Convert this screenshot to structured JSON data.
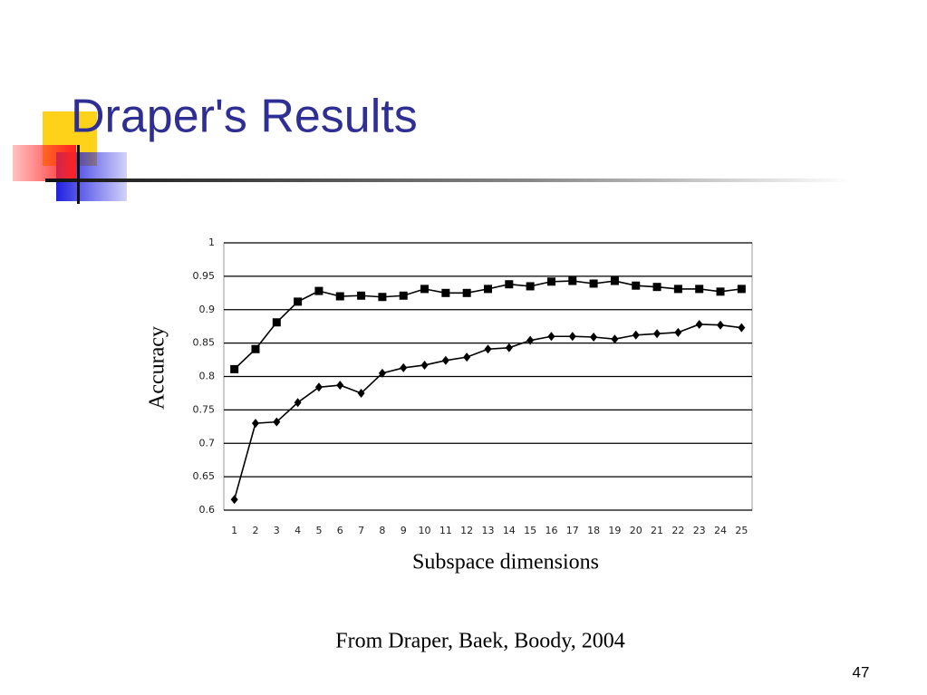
{
  "title": "Draper's Results",
  "caption": "From Draper, Baek, Boody, 2004",
  "page_number": "47",
  "chart_data": {
    "type": "line",
    "x_label": "Subspace dimensions",
    "y_label": "Accuracy",
    "categories": [
      "1",
      "2",
      "3",
      "4",
      "5",
      "6",
      "7",
      "8",
      "9",
      "10",
      "11",
      "12",
      "13",
      "14",
      "15",
      "16",
      "17",
      "18",
      "19",
      "20",
      "21",
      "22",
      "23",
      "24",
      "25"
    ],
    "ylim": [
      0.6,
      1
    ],
    "yticks": [
      0.6,
      0.65,
      0.7,
      0.75,
      0.8,
      0.85,
      0.9,
      0.95,
      1
    ],
    "grid": true,
    "series": [
      {
        "color": "#000000",
        "marker": "square",
        "values": [
          0.811,
          0.841,
          0.881,
          0.912,
          0.928,
          0.92,
          0.921,
          0.919,
          0.921,
          0.931,
          0.925,
          0.925,
          0.931,
          0.938,
          0.935,
          0.942,
          0.943,
          0.939,
          0.943,
          0.936,
          0.934,
          0.931,
          0.931,
          0.927,
          0.931
        ]
      },
      {
        "color": "#000000",
        "marker": "diamond",
        "values": [
          0.616,
          0.73,
          0.732,
          0.761,
          0.784,
          0.787,
          0.775,
          0.805,
          0.813,
          0.817,
          0.824,
          0.829,
          0.841,
          0.843,
          0.854,
          0.86,
          0.86,
          0.859,
          0.856,
          0.862,
          0.864,
          0.866,
          0.878,
          0.877,
          0.873
        ]
      }
    ]
  }
}
